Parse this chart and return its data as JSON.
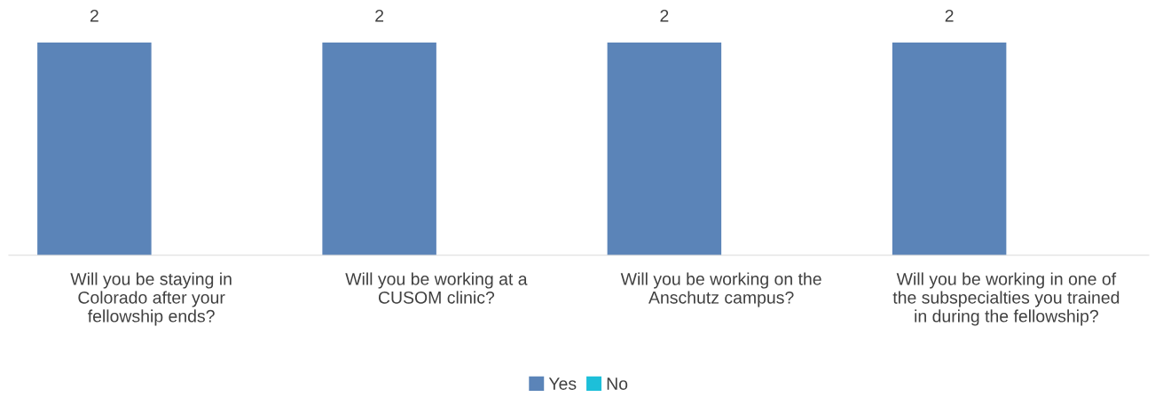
{
  "chart_data": {
    "type": "bar",
    "categories": [
      "Will you be staying in\nColorado after your\nfellowship ends?",
      "Will you be working at a\nCUSOM clinic?",
      "Will you be working on the\nAnschutz campus?",
      "Will you be working in one of\nthe subspecialties you trained\nin during the fellowship?"
    ],
    "series": [
      {
        "name": "Yes",
        "color": "#5b84b8",
        "values": [
          2,
          2,
          2,
          2
        ],
        "value_labels": [
          "2",
          "2",
          "2",
          "2"
        ]
      },
      {
        "name": "No",
        "color": "#1dbfd9",
        "values": [
          0,
          0,
          0,
          0
        ],
        "value_labels": [
          null,
          null,
          null,
          null
        ]
      }
    ],
    "legend": "bottom",
    "grid": false
  }
}
